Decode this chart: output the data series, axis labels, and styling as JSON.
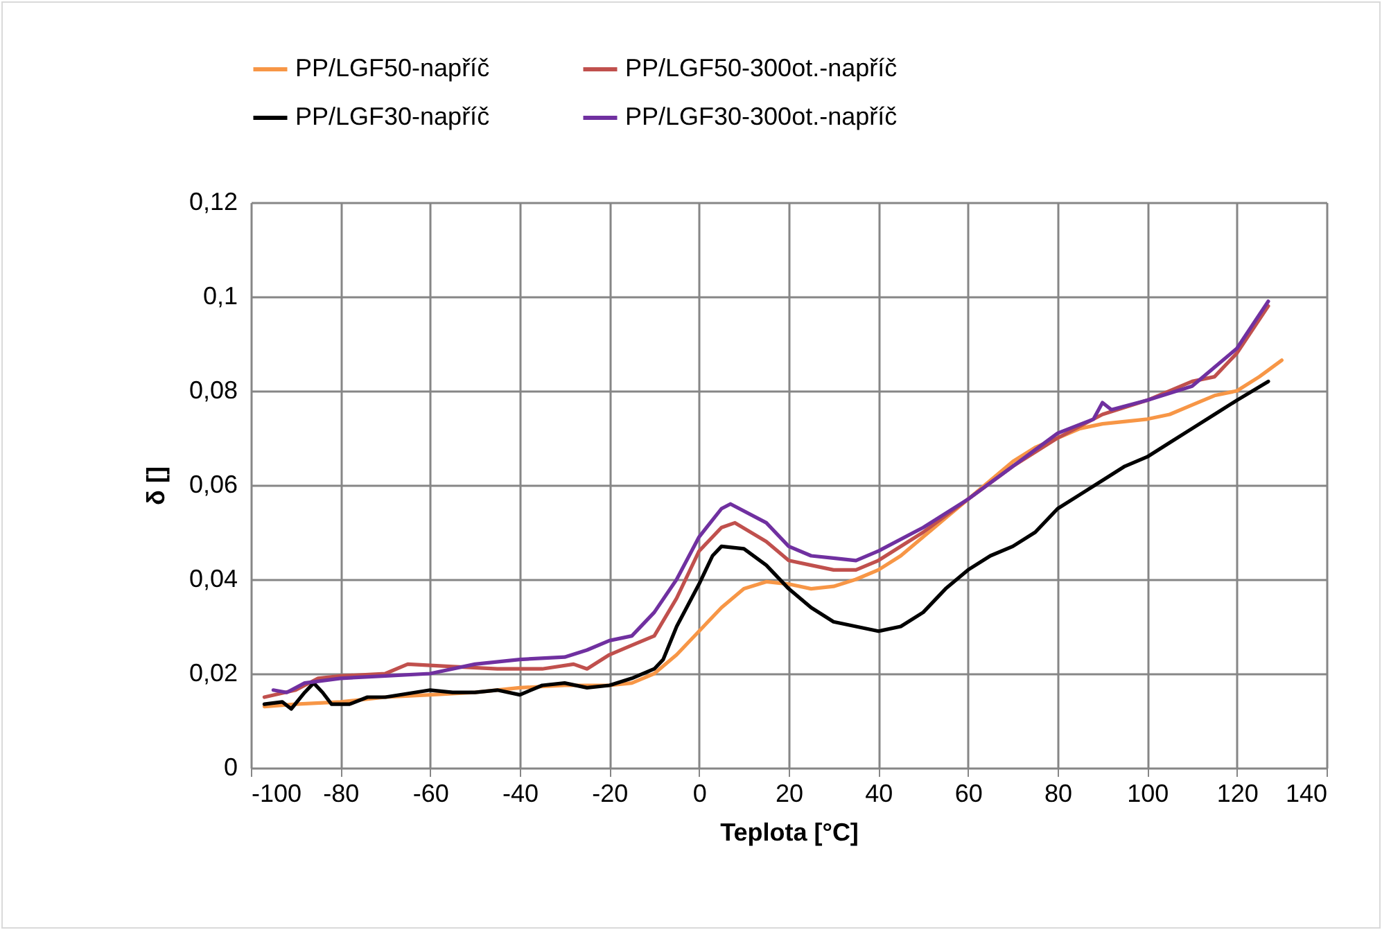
{
  "chart_data": {
    "type": "line",
    "xlabel": "Teplota [°C]",
    "ylabel": "δ []",
    "xlim": [
      -100,
      140
    ],
    "xticks": [
      -100,
      -80,
      -60,
      -40,
      -20,
      0,
      20,
      40,
      60,
      80,
      100,
      120,
      140
    ],
    "ylim": [
      0,
      0.12
    ],
    "yticks": [
      {
        "value": 0,
        "label": "0"
      },
      {
        "value": 0.02,
        "label": "0,02"
      },
      {
        "value": 0.04,
        "label": "0,04"
      },
      {
        "value": 0.06,
        "label": "0,06"
      },
      {
        "value": 0.08,
        "label": "0,08"
      },
      {
        "value": 0.1,
        "label": "0,1"
      },
      {
        "value": 0.12,
        "label": "0,12"
      }
    ],
    "grid": true,
    "legend": "top",
    "line_style": "solid",
    "marker": "none",
    "series": [
      {
        "name": "PP/LGF50-napříč",
        "color": "#f79646",
        "x": [
          -97,
          -90,
          -80,
          -70,
          -60,
          -50,
          -40,
          -30,
          -20,
          -15,
          -10,
          -5,
          0,
          5,
          10,
          15,
          20,
          25,
          30,
          35,
          40,
          45,
          50,
          55,
          60,
          65,
          70,
          75,
          80,
          85,
          90,
          100,
          105,
          110,
          115,
          120,
          125,
          130
        ],
        "values": [
          0.013,
          0.0135,
          0.014,
          0.015,
          0.0155,
          0.016,
          0.017,
          0.0175,
          0.0175,
          0.018,
          0.02,
          0.024,
          0.029,
          0.034,
          0.038,
          0.0395,
          0.039,
          0.038,
          0.0385,
          0.04,
          0.042,
          0.045,
          0.049,
          0.053,
          0.057,
          0.061,
          0.065,
          0.068,
          0.07,
          0.072,
          0.073,
          0.074,
          0.075,
          0.077,
          0.079,
          0.08,
          0.083,
          0.0865
        ]
      },
      {
        "name": "PP/LGF50-300ot.-napříč",
        "color": "#c0504d",
        "x": [
          -97,
          -90,
          -85,
          -80,
          -70,
          -65,
          -55,
          -45,
          -35,
          -28,
          -25,
          -20,
          -15,
          -10,
          -5,
          0,
          5,
          8,
          15,
          20,
          25,
          30,
          35,
          40,
          50,
          60,
          70,
          80,
          90,
          100,
          110,
          115,
          120,
          127
        ],
        "values": [
          0.015,
          0.0165,
          0.019,
          0.0195,
          0.02,
          0.022,
          0.0215,
          0.021,
          0.021,
          0.022,
          0.021,
          0.024,
          0.026,
          0.028,
          0.036,
          0.046,
          0.051,
          0.052,
          0.048,
          0.044,
          0.043,
          0.042,
          0.042,
          0.044,
          0.05,
          0.057,
          0.064,
          0.07,
          0.075,
          0.078,
          0.082,
          0.083,
          0.088,
          0.098
        ]
      },
      {
        "name": "PP/LGF30-napříč",
        "color": "#000000",
        "x": [
          -97,
          -93,
          -91,
          -88,
          -86,
          -84,
          -82,
          -78,
          -74,
          -70,
          -60,
          -55,
          -50,
          -45,
          -40,
          -35,
          -30,
          -25,
          -20,
          -15,
          -10,
          -8,
          -5,
          0,
          3,
          5,
          10,
          15,
          20,
          25,
          30,
          35,
          40,
          45,
          50,
          55,
          60,
          65,
          70,
          75,
          80,
          85,
          90,
          95,
          100,
          105,
          110,
          115,
          120,
          127
        ],
        "values": [
          0.0135,
          0.014,
          0.0125,
          0.016,
          0.018,
          0.016,
          0.0135,
          0.0135,
          0.015,
          0.015,
          0.0165,
          0.016,
          0.016,
          0.0165,
          0.0155,
          0.0175,
          0.018,
          0.017,
          0.0175,
          0.019,
          0.021,
          0.023,
          0.03,
          0.039,
          0.045,
          0.047,
          0.0465,
          0.043,
          0.038,
          0.034,
          0.031,
          0.03,
          0.029,
          0.03,
          0.033,
          0.038,
          0.042,
          0.045,
          0.047,
          0.05,
          0.055,
          0.058,
          0.061,
          0.064,
          0.066,
          0.069,
          0.072,
          0.075,
          0.078,
          0.082
        ]
      },
      {
        "name": "PP/LGF30-300ot.-napříč",
        "color": "#7030a0",
        "x": [
          -95,
          -92,
          -88,
          -80,
          -70,
          -60,
          -50,
          -40,
          -30,
          -25,
          -20,
          -15,
          -10,
          -5,
          0,
          5,
          7,
          15,
          20,
          25,
          30,
          35,
          40,
          50,
          60,
          70,
          80,
          88,
          90,
          92,
          100,
          110,
          115,
          120,
          127
        ],
        "values": [
          0.0165,
          0.016,
          0.018,
          0.019,
          0.0195,
          0.02,
          0.022,
          0.023,
          0.0235,
          0.025,
          0.027,
          0.028,
          0.033,
          0.04,
          0.049,
          0.055,
          0.056,
          0.052,
          0.047,
          0.045,
          0.0445,
          0.044,
          0.046,
          0.051,
          0.057,
          0.064,
          0.071,
          0.074,
          0.0775,
          0.076,
          0.078,
          0.081,
          0.085,
          0.089,
          0.099
        ]
      }
    ]
  }
}
